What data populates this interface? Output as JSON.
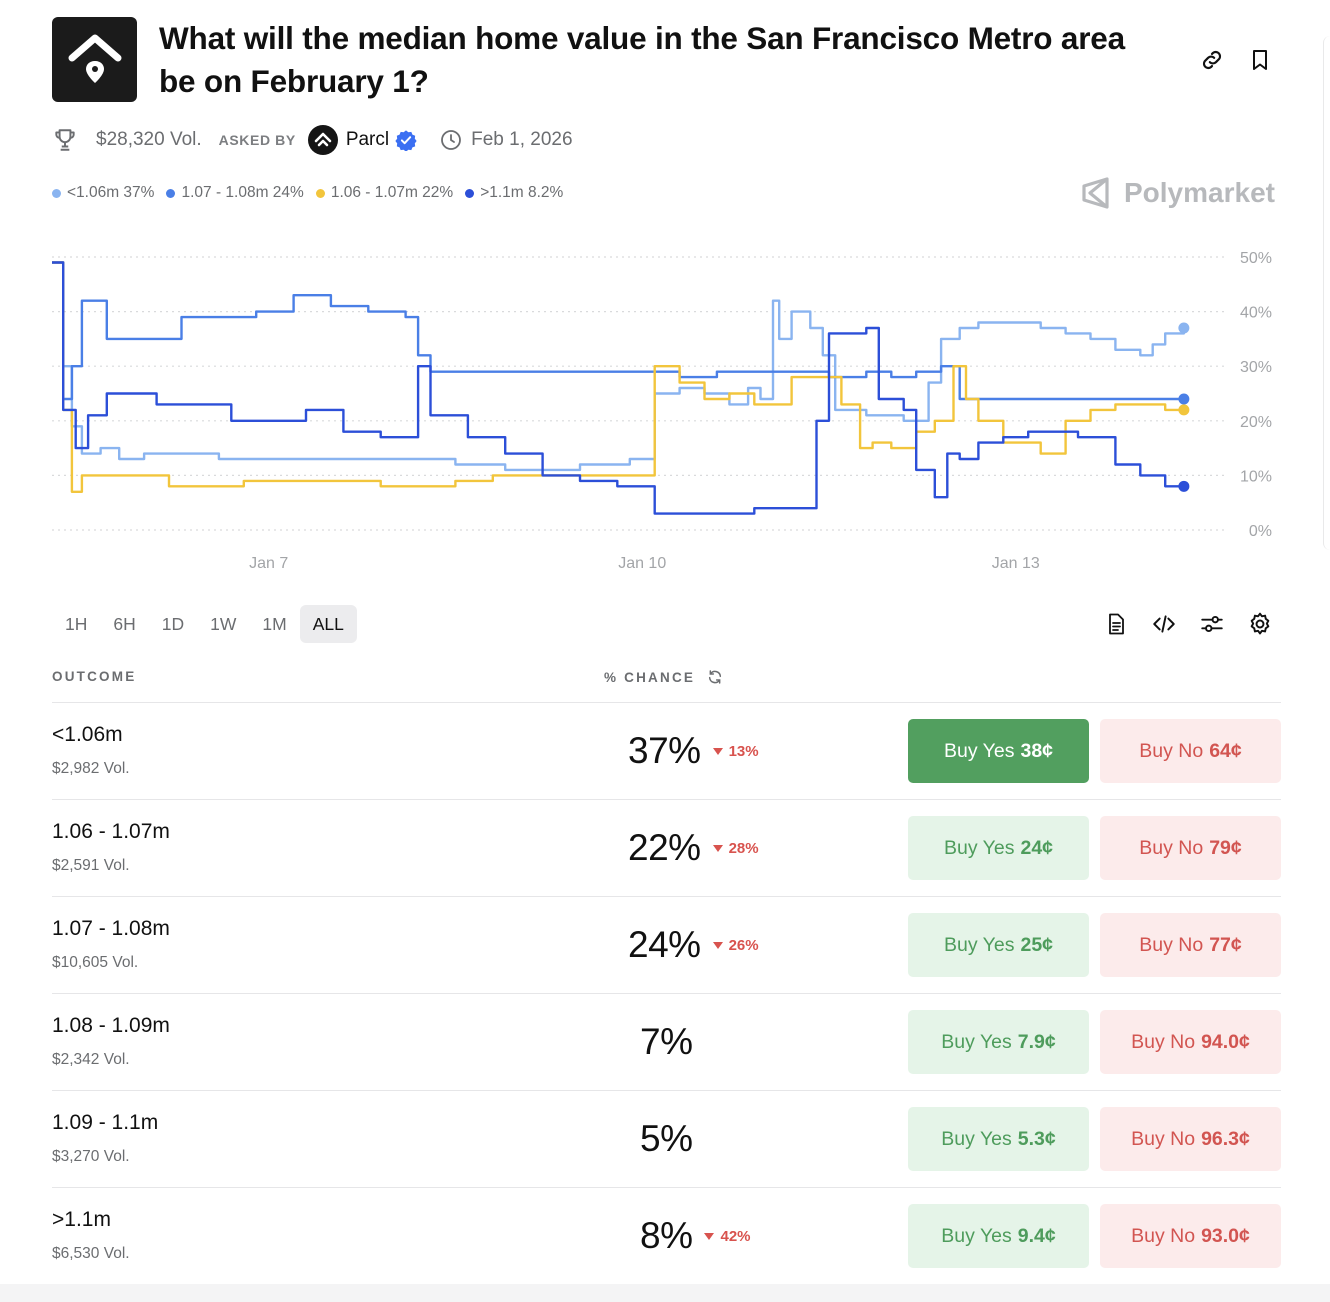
{
  "header": {
    "title": "What will the median home value in the San Francisco Metro area be on February 1?",
    "volume": "$28,320 Vol.",
    "asked_by_label": "ASKED BY",
    "creator": "Parcl",
    "date": "Feb 1, 2026"
  },
  "brand": {
    "name": "Polymarket"
  },
  "legend": [
    {
      "label": "<1.06m 37%",
      "color": "#8ab4f0"
    },
    {
      "label": "1.07 - 1.08m 24%",
      "color": "#4a7fe6"
    },
    {
      "label": "1.06 - 1.07m 22%",
      "color": "#f2c53c"
    },
    {
      "label": ">1.1m 8.2%",
      "color": "#2c4fd8"
    }
  ],
  "chart_data": {
    "type": "line",
    "x_unit": "days",
    "x_ticks": [
      {
        "x": 7,
        "label": "Jan 7"
      },
      {
        "x": 10,
        "label": "Jan 10"
      },
      {
        "x": 13,
        "label": "Jan 13"
      }
    ],
    "xlim": [
      5.26,
      14.6
    ],
    "y_ticks": [
      "0%",
      "10%",
      "20%",
      "30%",
      "40%",
      "50%"
    ],
    "ylim": [
      0,
      50
    ],
    "grid": true,
    "series": [
      {
        "name": "<1.06m",
        "color": "#8ab4f0",
        "x": [
          5.26,
          5.35,
          5.42,
          5.5,
          5.65,
          5.8,
          6,
          6.3,
          6.6,
          6.9,
          7.2,
          7.6,
          8,
          8.5,
          8.9,
          9.1,
          9.5,
          9.9,
          10.05,
          10.1,
          10.3,
          10.5,
          10.7,
          10.85,
          10.95,
          11.05,
          11.1,
          11.2,
          11.35,
          11.45,
          11.55,
          11.8,
          12.1,
          12.3,
          12.4,
          12.55,
          12.7,
          12.9,
          13.2,
          13.4,
          13.6,
          13.8,
          14,
          14.1,
          14.2,
          14.35
        ],
        "y": [
          49,
          30,
          19,
          14,
          15,
          13,
          14,
          14,
          13,
          13,
          13,
          13,
          13,
          12,
          11,
          11,
          12,
          13,
          13,
          25,
          26,
          25,
          23,
          26,
          24,
          42,
          35,
          40,
          37,
          32,
          22,
          21,
          20,
          27,
          35,
          37,
          38,
          38,
          37,
          36,
          35,
          33,
          32,
          34,
          36,
          37
        ]
      },
      {
        "name": "1.07 - 1.08m",
        "color": "#4a7fe6",
        "x": [
          5.26,
          5.35,
          5.42,
          5.5,
          5.7,
          6,
          6.3,
          6.6,
          6.9,
          7.2,
          7.5,
          7.8,
          8.1,
          8.2,
          8.3,
          8.6,
          9,
          9.4,
          9.8,
          10.05,
          10.3,
          10.6,
          10.9,
          11.2,
          11.5,
          11.8,
          12,
          12.2,
          12.4,
          12.55,
          12.8,
          13.1,
          13.4,
          13.7,
          14,
          14.35
        ],
        "y": [
          49,
          24,
          30,
          42,
          35,
          35,
          39,
          39,
          40,
          43,
          41,
          40,
          39,
          32,
          29,
          29,
          29,
          29,
          29,
          29,
          28,
          29,
          29,
          29,
          28,
          29,
          28,
          29,
          30,
          24,
          24,
          24,
          24,
          24,
          24,
          24
        ]
      },
      {
        "name": "1.06 - 1.07m",
        "color": "#f2c53c",
        "x": [
          5.26,
          5.35,
          5.42,
          5.5,
          5.7,
          6,
          6.2,
          6.5,
          6.8,
          7.1,
          7.5,
          7.9,
          8.2,
          8.5,
          8.8,
          9.1,
          9.4,
          9.7,
          10.05,
          10.1,
          10.3,
          10.5,
          10.7,
          10.9,
          11.2,
          11.4,
          11.6,
          11.75,
          11.85,
          12,
          12.2,
          12.35,
          12.5,
          12.6,
          12.7,
          12.9,
          13.2,
          13.4,
          13.6,
          13.8,
          14,
          14.2,
          14.35
        ],
        "y": [
          49,
          22,
          7,
          10,
          10,
          10,
          8,
          8,
          9,
          9,
          9,
          8,
          8,
          9,
          10,
          10,
          10,
          10,
          10,
          30,
          27,
          24,
          25,
          23,
          28,
          28,
          23,
          15,
          16,
          15,
          18,
          20,
          30,
          24,
          20,
          16,
          14,
          20,
          22,
          23,
          23,
          22,
          22
        ]
      },
      {
        "name": ">1.1m",
        "color": "#2c4fd8",
        "x": [
          5.26,
          5.35,
          5.45,
          5.55,
          5.7,
          5.9,
          6.1,
          6.4,
          6.7,
          7,
          7.3,
          7.6,
          7.9,
          8.05,
          8.2,
          8.3,
          8.6,
          8.9,
          9.2,
          9.5,
          9.8,
          10.05,
          10.1,
          10.3,
          10.6,
          10.9,
          11.2,
          11.4,
          11.5,
          11.8,
          11.9,
          12.1,
          12.2,
          12.35,
          12.45,
          12.55,
          12.7,
          12.9,
          13.1,
          13.3,
          13.5,
          13.8,
          14,
          14.2,
          14.35
        ],
        "y": [
          49,
          22,
          15,
          21,
          25,
          25,
          23,
          23,
          20,
          20,
          22,
          18,
          17,
          17,
          30,
          21,
          17,
          14,
          10,
          9,
          8,
          8,
          3,
          3,
          3,
          4,
          4,
          20,
          36,
          37,
          24,
          22,
          11,
          6,
          14,
          13,
          16,
          17,
          18,
          18,
          17,
          12,
          10,
          8,
          8
        ]
      }
    ]
  },
  "time_ranges": [
    "1H",
    "6H",
    "1D",
    "1W",
    "1M",
    "ALL"
  ],
  "active_range": "ALL",
  "table": {
    "outcome_header": "OUTCOME",
    "chance_header": "% CHANCE",
    "buy_yes_label": "Buy Yes",
    "buy_no_label": "Buy No",
    "rows": [
      {
        "label": "<1.06m",
        "volume": "$2,982 Vol.",
        "chance": "37%",
        "delta": "13%",
        "yes_price": "38¢",
        "no_price": "64¢"
      },
      {
        "label": "1.06 - 1.07m",
        "volume": "$2,591 Vol.",
        "chance": "22%",
        "delta": "28%",
        "yes_price": "24¢",
        "no_price": "79¢"
      },
      {
        "label": "1.07 - 1.08m",
        "volume": "$10,605 Vol.",
        "chance": "24%",
        "delta": "26%",
        "yes_price": "25¢",
        "no_price": "77¢"
      },
      {
        "label": "1.08 - 1.09m",
        "volume": "$2,342 Vol.",
        "chance": "7%",
        "delta": "",
        "yes_price": "7.9¢",
        "no_price": "94.0¢"
      },
      {
        "label": "1.09 - 1.1m",
        "volume": "$3,270 Vol.",
        "chance": "5%",
        "delta": "",
        "yes_price": "5.3¢",
        "no_price": "96.3¢"
      },
      {
        "label": ">1.1m",
        "volume": "$6,530 Vol.",
        "chance": "8%",
        "delta": "42%",
        "yes_price": "9.4¢",
        "no_price": "93.0¢"
      }
    ]
  }
}
